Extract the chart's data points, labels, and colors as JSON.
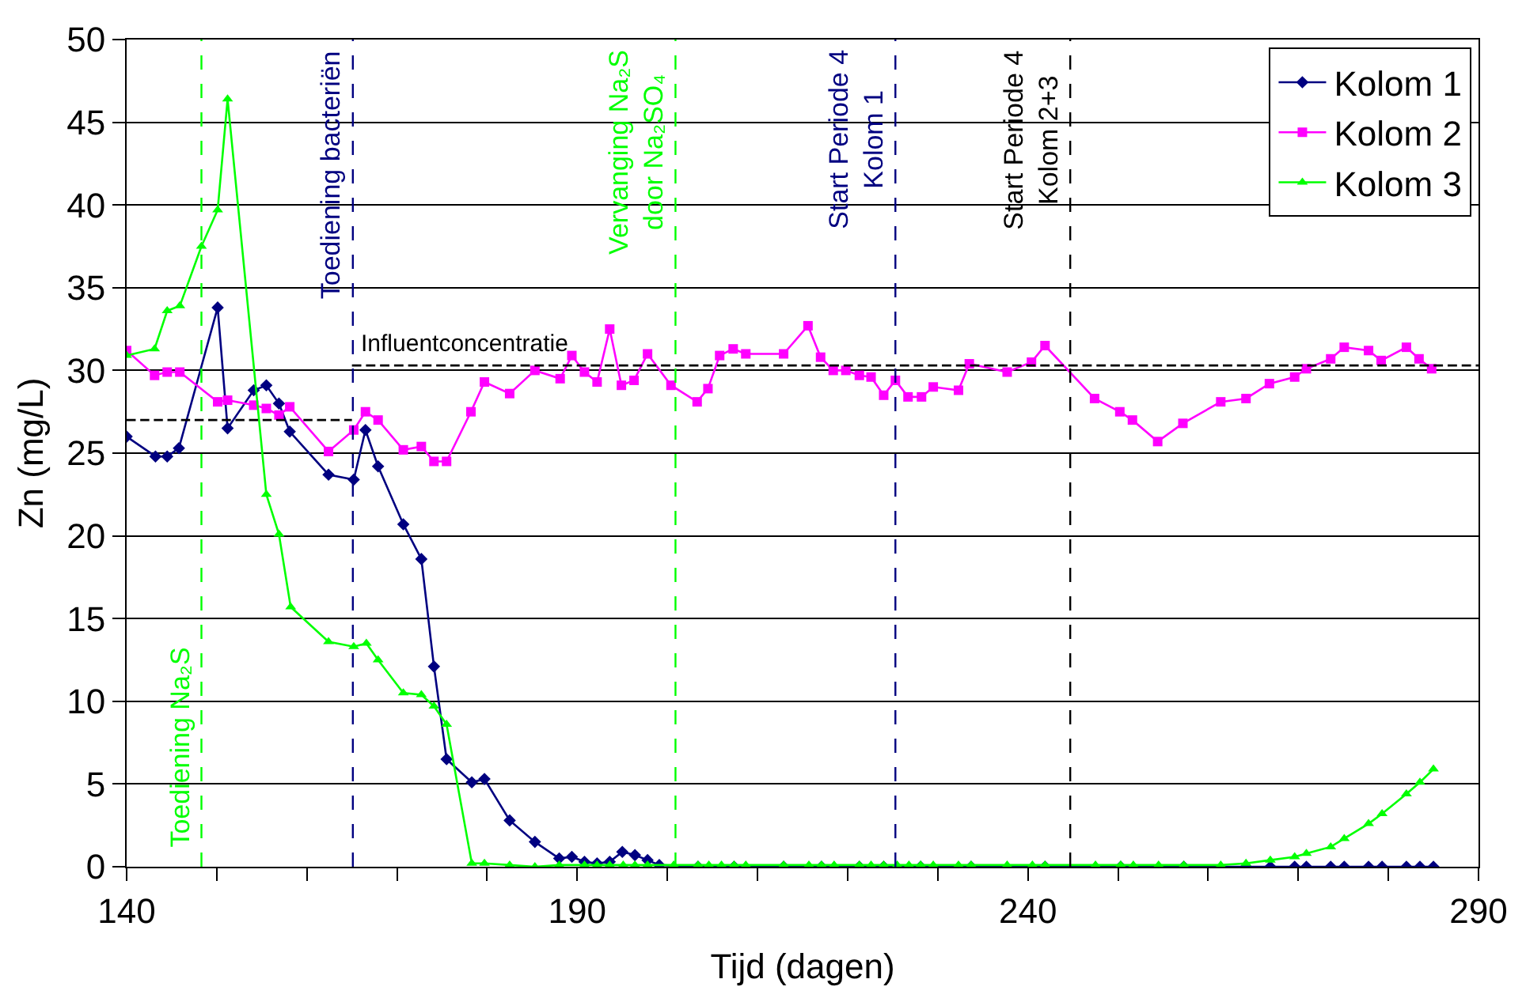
{
  "chart_data": {
    "type": "line",
    "xlabel": "Tijd (dagen)",
    "ylabel": "Zn (mg/L)",
    "xlim": [
      140,
      290
    ],
    "xticks": [
      140,
      {
        "value": 150,
        "label": null
      },
      {
        "value": 160,
        "label": null
      },
      {
        "value": 170,
        "label": null
      },
      {
        "value": 180,
        "label": null
      },
      190,
      {
        "value": 200,
        "label": null
      },
      {
        "value": 210,
        "label": null
      },
      {
        "value": 220,
        "label": null
      },
      {
        "value": 230,
        "label": null
      },
      240,
      {
        "value": 250,
        "label": null
      },
      {
        "value": 260,
        "label": null
      },
      {
        "value": 270,
        "label": null
      },
      {
        "value": 280,
        "label": null
      },
      290
    ],
    "ylim": [
      0,
      50
    ],
    "yticks": [
      0,
      5,
      10,
      15,
      20,
      25,
      30,
      35,
      40,
      45,
      50
    ],
    "grid": "y",
    "legend": "top right",
    "series": [
      {
        "name": "Kolom 1",
        "color": "#000080",
        "marker": "diamond",
        "x": [
          140.0,
          143.2,
          144.5,
          145.8,
          150.1,
          151.2,
          154.1,
          155.5,
          156.9,
          158.1,
          162.4,
          165.2,
          166.5,
          167.9,
          170.7,
          172.7,
          174.1,
          175.5,
          178.3,
          179.7,
          182.5,
          185.3,
          188.0,
          189.4,
          190.8,
          192.2,
          193.6,
          195.0,
          196.4,
          197.8,
          199.1,
          203.4,
          207.4,
          212.9,
          217.1,
          221.3,
          224.0,
          228.1,
          233.7,
          241.9,
          250.3,
          257.3,
          264.2,
          266.9,
          269.6,
          270.9,
          273.6,
          275.1,
          277.8,
          279.3,
          282.0,
          283.5,
          285.0
        ],
        "values": [
          26.0,
          24.8,
          24.8,
          25.3,
          33.8,
          26.5,
          28.8,
          29.1,
          28.0,
          26.3,
          23.7,
          23.4,
          26.4,
          24.2,
          20.7,
          18.6,
          12.1,
          6.5,
          5.1,
          5.3,
          2.8,
          1.5,
          0.5,
          0.6,
          0.3,
          0.2,
          0.3,
          0.9,
          0.7,
          0.4,
          0.1,
          0,
          0,
          0,
          0,
          0,
          0,
          0,
          0,
          0,
          0,
          0,
          0,
          0,
          0,
          0,
          0,
          0,
          0,
          0,
          0,
          0,
          0
        ]
      },
      {
        "name": "Kolom 2",
        "color": "#ff00ff",
        "marker": "square",
        "x": [
          140.0,
          143.1,
          144.5,
          145.9,
          150.1,
          151.2,
          154.1,
          155.5,
          156.9,
          158.1,
          162.4,
          165.2,
          166.5,
          167.9,
          170.7,
          172.7,
          174.1,
          175.5,
          178.2,
          179.7,
          182.5,
          185.3,
          188.1,
          189.4,
          190.8,
          192.2,
          193.6,
          194.9,
          196.3,
          197.8,
          200.4,
          203.3,
          204.5,
          205.8,
          207.3,
          208.7,
          212.9,
          215.6,
          217.0,
          218.4,
          219.8,
          221.3,
          222.6,
          224.0,
          225.3,
          226.7,
          228.2,
          229.5,
          232.3,
          233.5,
          237.7,
          240.4,
          241.9,
          247.4,
          250.2,
          251.6,
          254.4,
          257.2,
          261.4,
          264.2,
          266.8,
          269.6,
          270.9,
          273.6,
          275.1,
          277.8,
          279.2,
          282.0,
          283.4,
          284.8
        ],
        "values": [
          31.2,
          29.7,
          29.9,
          29.9,
          28.1,
          28.2,
          27.9,
          27.7,
          27.3,
          27.8,
          25.1,
          26.4,
          27.5,
          27.0,
          25.2,
          25.4,
          24.5,
          24.5,
          27.5,
          29.3,
          28.6,
          30.0,
          29.5,
          30.9,
          29.9,
          29.3,
          32.5,
          29.1,
          29.4,
          31.0,
          29.1,
          28.1,
          28.9,
          30.9,
          31.3,
          31.0,
          31.0,
          32.7,
          30.8,
          30.0,
          30.0,
          29.7,
          29.6,
          28.5,
          29.4,
          28.4,
          28.4,
          29.0,
          28.8,
          30.4,
          29.9,
          30.5,
          31.5,
          28.3,
          27.5,
          27.0,
          25.7,
          26.8,
          28.1,
          28.3,
          29.2,
          29.6,
          30.1,
          30.7,
          31.4,
          31.2,
          30.6,
          31.4,
          30.7,
          30.1
        ]
      },
      {
        "name": "Kolom 3",
        "color": "#00ff00",
        "marker": "triangle",
        "x": [
          140.0,
          143.1,
          144.5,
          145.9,
          148.3,
          150.1,
          151.2,
          155.5,
          156.9,
          158.2,
          162.4,
          165.2,
          166.6,
          167.9,
          170.7,
          172.7,
          174.1,
          175.5,
          178.3,
          179.7,
          182.5,
          185.3,
          188.0,
          190.8,
          192.2,
          193.6,
          195.1,
          196.4,
          197.8,
          200.7,
          203.4,
          204.6,
          206.0,
          207.4,
          208.7,
          212.9,
          215.7,
          217.1,
          218.5,
          221.3,
          222.6,
          224.0,
          225.5,
          226.8,
          228.1,
          229.5,
          232.3,
          233.7,
          237.7,
          240.5,
          241.9,
          247.5,
          250.3,
          251.7,
          254.5,
          257.3,
          261.4,
          264.2,
          266.9,
          269.6,
          270.9,
          273.6,
          275.1,
          277.8,
          279.3,
          282.0,
          283.5,
          285.0
        ],
        "values": [
          30.9,
          31.3,
          33.6,
          33.9,
          37.5,
          39.7,
          46.4,
          22.5,
          20.1,
          15.7,
          13.6,
          13.3,
          13.5,
          12.5,
          10.5,
          10.4,
          9.7,
          8.6,
          0.2,
          0.2,
          0.1,
          0,
          0.1,
          0.1,
          0.1,
          0.1,
          0.1,
          0.1,
          0.1,
          0.1,
          0.1,
          0.1,
          0.1,
          0.1,
          0.1,
          0.1,
          0.1,
          0.1,
          0.1,
          0.1,
          0.1,
          0.1,
          0.1,
          0.1,
          0.1,
          0.1,
          0.1,
          0.1,
          0.1,
          0.1,
          0.1,
          0.1,
          0.1,
          0.1,
          0.1,
          0.1,
          0.1,
          0.2,
          0.4,
          0.6,
          0.8,
          1.2,
          1.7,
          2.6,
          3.2,
          4.4,
          5.1,
          5.9
        ]
      },
      {
        "color": "#000000",
        "marker": "none",
        "line_style": "dashed",
        "x": [
          140,
          165
        ],
        "values": [
          27.0,
          27.0
        ]
      },
      {
        "name": "Influentconcentratie",
        "color": "#000000",
        "marker": "none",
        "line_style": "dashed",
        "x": [
          165,
          290
        ],
        "values": [
          30.3,
          30.3
        ]
      }
    ],
    "ref_lines": [
      {
        "axis": "x",
        "value": 148.3,
        "label": "Toediening Na₂S",
        "color": "#00ff00",
        "line_style": "dashed"
      },
      {
        "axis": "x",
        "value": 165.1,
        "label": "Toediening bacteriën",
        "color": "#000080",
        "line_style": "dashed"
      },
      {
        "axis": "x",
        "value": 200.9,
        "label": "Vervanging Na₂S\ndoor Na₂SO₄",
        "color": "#00ff00",
        "line_style": "dashed"
      },
      {
        "axis": "x",
        "value": 225.3,
        "label": "Start Periode 4\nKolom 1",
        "color": "#000080",
        "line_style": "dashed"
      },
      {
        "axis": "x",
        "value": 244.7,
        "label": "Start Periode 4\nKolom 2+3",
        "color": "#000000",
        "line_style": "dashed"
      }
    ]
  }
}
